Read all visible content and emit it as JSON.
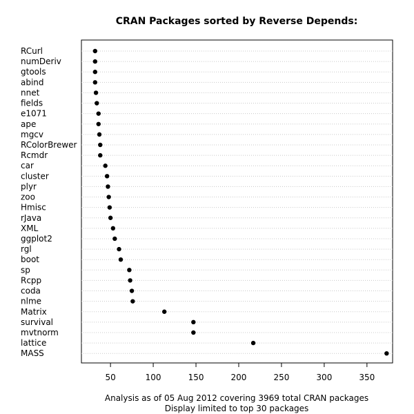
{
  "chart_data": {
    "type": "scatter",
    "title": "CRAN Packages sorted by Reverse Depends:",
    "caption_lines": [
      "Analysis as of 05 Aug 2012 covering 3969 total CRAN packages",
      "Display limited to top 30 packages"
    ],
    "xlabel": "",
    "ylabel": "",
    "xlim": [
      16,
      380
    ],
    "xticks": [
      50,
      100,
      150,
      200,
      250,
      300,
      350
    ],
    "grid": "dotted horizontal",
    "categories": [
      "RCurl",
      "numDeriv",
      "gtools",
      "abind",
      "nnet",
      "fields",
      "e1071",
      "ape",
      "mgcv",
      "RColorBrewer",
      "Rcmdr",
      "car",
      "cluster",
      "plyr",
      "zoo",
      "Hmisc",
      "rJava",
      "XML",
      "ggplot2",
      "rgl",
      "boot",
      "sp",
      "Rcpp",
      "coda",
      "nlme",
      "Matrix",
      "survival",
      "mvtnorm",
      "lattice",
      "MASS"
    ],
    "values": [
      32,
      32,
      32,
      32,
      33,
      34,
      36,
      36,
      37,
      38,
      38,
      44,
      46,
      47,
      48,
      49,
      50,
      53,
      55,
      60,
      62,
      72,
      73,
      75,
      76,
      113,
      147,
      147,
      217,
      373
    ]
  }
}
